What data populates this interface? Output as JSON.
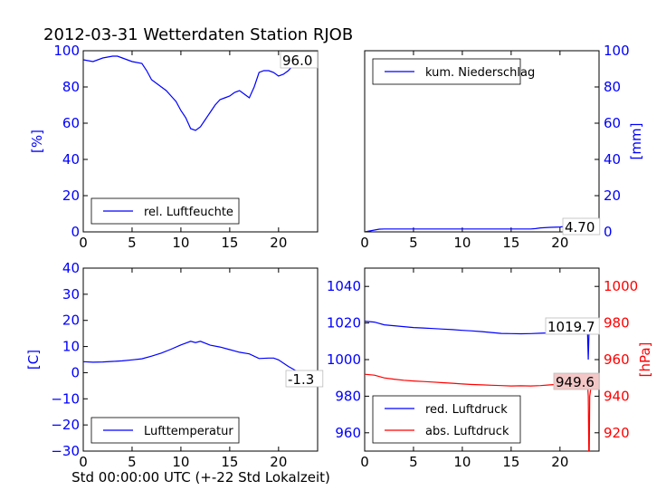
{
  "figure_title": "2012-03-31 Wetterdaten Station RJOB",
  "x_label": "Std 00:00:00 UTC (+-22 Std Lokalzeit)",
  "colors": {
    "blue": "#0000ff",
    "red": "#ff0000",
    "black": "#000000"
  },
  "chart_data": [
    {
      "id": "humidity",
      "type": "line",
      "ylabel": "[%]",
      "xlim": [
        0,
        24
      ],
      "ylim": [
        0,
        100
      ],
      "xticks": [
        "0",
        "5",
        "10",
        "15",
        "20"
      ],
      "yticks": [
        "0",
        "20",
        "40",
        "60",
        "80",
        "100"
      ],
      "legend": {
        "placement": "lower-left",
        "entries": [
          "rel. Luftfeuchte"
        ]
      },
      "annotation": "96.0",
      "series": [
        {
          "name": "rel. Luftfeuchte",
          "color": "#0000ff",
          "x": [
            0,
            1,
            2,
            3,
            3.5,
            4,
            5,
            6,
            6.5,
            7,
            7.5,
            8,
            8.5,
            9,
            9.5,
            10,
            10.5,
            11,
            11.5,
            12,
            12.5,
            13,
            13.5,
            14,
            14.5,
            15,
            15.5,
            16,
            16.5,
            17,
            17.5,
            18,
            18.5,
            19,
            19.5,
            20,
            20.5,
            21,
            21.5,
            22,
            22.5,
            23,
            23.5,
            24
          ],
          "y": [
            95,
            94,
            96,
            97,
            97,
            96,
            94,
            93,
            89,
            84,
            82,
            80,
            78,
            75,
            72,
            67,
            63,
            57,
            56,
            58,
            62,
            66,
            70,
            73,
            74,
            75,
            77,
            78,
            76,
            74,
            80,
            88,
            89,
            89,
            88,
            86,
            87,
            89,
            92,
            93,
            92,
            94,
            95,
            96
          ]
        }
      ]
    },
    {
      "id": "precip",
      "type": "line",
      "ylabel": "[mm]",
      "xlim": [
        0,
        24
      ],
      "ylim": [
        0,
        100
      ],
      "xticks": [
        "0",
        "5",
        "10",
        "15",
        "20"
      ],
      "yticks": [
        "0",
        "20",
        "40",
        "60",
        "80",
        "100"
      ],
      "legend": {
        "placement": "upper-left",
        "entries": [
          "kum. Niederschlag"
        ]
      },
      "annotation": "4.70",
      "series": [
        {
          "name": "kum. Niederschlag",
          "color": "#0000ff",
          "x": [
            0,
            0.5,
            1,
            1.5,
            2,
            5,
            10,
            15,
            17,
            17.5,
            18,
            19,
            20,
            20.5,
            21,
            21.5,
            22,
            22.5,
            23,
            24
          ],
          "y": [
            0,
            0.5,
            1,
            1.5,
            1.6,
            1.6,
            1.6,
            1.6,
            1.6,
            1.8,
            2.2,
            2.5,
            2.7,
            3.0,
            3.4,
            3.8,
            4.1,
            4.4,
            4.6,
            4.7
          ]
        }
      ]
    },
    {
      "id": "temperature",
      "type": "line",
      "ylabel": "[C]",
      "xlim": [
        0,
        24
      ],
      "ylim": [
        -30,
        40
      ],
      "xticks": [
        "0",
        "5",
        "10",
        "15",
        "20"
      ],
      "yticks": [
        "−30",
        "−20",
        "−10",
        "0",
        "10",
        "20",
        "30",
        "40"
      ],
      "legend": {
        "placement": "lower-left",
        "entries": [
          "Lufttemperatur"
        ]
      },
      "annotation": "-1.3",
      "series": [
        {
          "name": "Lufttemperatur",
          "color": "#0000ff",
          "x": [
            0,
            1,
            2,
            3,
            4,
            5,
            6,
            7,
            8,
            9,
            10,
            10.5,
            11,
            11.5,
            12,
            13,
            14,
            15,
            16,
            17,
            18,
            19,
            19.5,
            20,
            21,
            22,
            23,
            24
          ],
          "y": [
            4.2,
            4.0,
            4.1,
            4.3,
            4.5,
            4.9,
            5.3,
            6.3,
            7.5,
            9.0,
            10.6,
            11.3,
            12.0,
            11.5,
            12.0,
            10.5,
            9.8,
            8.8,
            7.8,
            7.2,
            5.4,
            5.6,
            5.6,
            4.9,
            2.4,
            0.3,
            -0.7,
            -1.3
          ]
        }
      ]
    },
    {
      "id": "pressure",
      "type": "line",
      "ylabel": "[hPa]",
      "xlim": [
        0,
        24
      ],
      "ylim_left": [
        950,
        1050
      ],
      "ylim_right": [
        910,
        1010
      ],
      "xticks": [
        "0",
        "5",
        "10",
        "15",
        "20"
      ],
      "yticks_left": [
        "960",
        "980",
        "1000",
        "1020",
        "1040"
      ],
      "yticks_right": [
        "920",
        "940",
        "960",
        "980",
        "1000"
      ],
      "legend": {
        "placement": "lower-left",
        "entries": [
          "red. Luftdruck",
          "abs. Luftdruck"
        ]
      },
      "annotations": [
        "1019.7",
        "949.6"
      ],
      "series": [
        {
          "name": "red. Luftdruck",
          "color": "#0000ff",
          "axis": "left",
          "x": [
            0,
            1,
            2,
            3,
            4,
            5,
            6,
            7,
            8,
            9,
            10,
            11,
            12,
            13,
            14,
            15,
            16,
            17,
            18,
            19,
            20,
            21,
            22,
            22.5,
            22.8,
            22.9,
            23.0,
            23.3,
            24
          ],
          "y": [
            1021,
            1020.5,
            1019,
            1018.5,
            1018,
            1017.5,
            1017.3,
            1017,
            1016.7,
            1016.4,
            1016,
            1015.7,
            1015.3,
            1014.8,
            1014.3,
            1014.2,
            1014.1,
            1014.2,
            1014.4,
            1014.6,
            1015,
            1016.5,
            1018.5,
            1019.5,
            1020,
            1000,
            1019.7,
            1019.7,
            1019.7
          ]
        },
        {
          "name": "abs. Luftdruck",
          "color": "#ff0000",
          "axis": "right",
          "x": [
            0,
            1,
            2,
            3,
            4,
            5,
            6,
            7,
            8,
            9,
            10,
            11,
            12,
            13,
            14,
            15,
            16,
            17,
            18,
            19,
            20,
            21,
            22,
            22.5,
            22.8,
            22.9,
            22.95,
            23.0,
            23.05,
            23.3,
            24
          ],
          "y": [
            952,
            951.5,
            950,
            949.3,
            948.7,
            948.3,
            948,
            947.7,
            947.4,
            947.1,
            946.7,
            946.4,
            946.2,
            946.0,
            945.8,
            945.6,
            945.7,
            945.6,
            945.8,
            946.2,
            946.6,
            947.5,
            948.6,
            949.4,
            949.6,
            940,
            910,
            910,
            940,
            949.6,
            949.6
          ]
        }
      ]
    }
  ]
}
